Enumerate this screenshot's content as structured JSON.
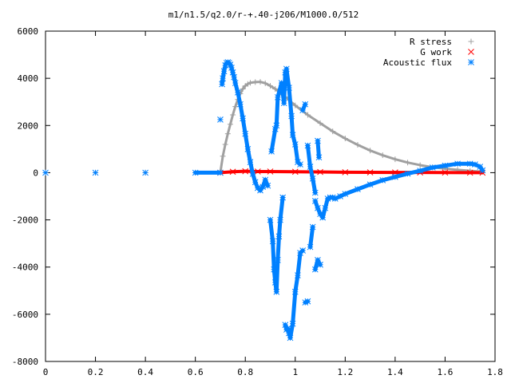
{
  "chart_data": {
    "type": "scatter",
    "title": "m1/n1.5/q2.0/r-+.40-j206/M1000.0/512",
    "xlabel": "",
    "ylabel": "",
    "xlim": [
      0,
      1.8
    ],
    "ylim": [
      -8000,
      6000
    ],
    "x_ticks": [
      "0",
      "0.2",
      "0.4",
      "0.6",
      "0.8",
      "1",
      "1.2",
      "1.4",
      "1.6",
      "1.8"
    ],
    "y_ticks": [
      "6000",
      "4000",
      "2000",
      "0",
      "-2000",
      "-4000",
      "-6000",
      "-8000"
    ],
    "grid": false,
    "legend_position": "top-right",
    "series": [
      {
        "name": "R stress",
        "marker": "plus",
        "color": "#a0a0a0",
        "points": [
          [
            0.0,
            0
          ],
          [
            0.2,
            0
          ],
          [
            0.4,
            0
          ],
          [
            0.6,
            0
          ],
          [
            0.7,
            0
          ],
          [
            0.71,
            700
          ],
          [
            0.72,
            1200
          ],
          [
            0.73,
            1650
          ],
          [
            0.74,
            2050
          ],
          [
            0.75,
            2450
          ],
          [
            0.76,
            2800
          ],
          [
            0.77,
            3100
          ],
          [
            0.78,
            3350
          ],
          [
            0.79,
            3550
          ],
          [
            0.8,
            3680
          ],
          [
            0.81,
            3760
          ],
          [
            0.82,
            3810
          ],
          [
            0.84,
            3840
          ],
          [
            0.86,
            3850
          ],
          [
            0.88,
            3790
          ],
          [
            0.9,
            3680
          ],
          [
            0.92,
            3550
          ],
          [
            0.94,
            3380
          ],
          [
            0.96,
            3210
          ],
          [
            1.0,
            2850
          ],
          [
            1.05,
            2450
          ],
          [
            1.1,
            2100
          ],
          [
            1.15,
            1750
          ],
          [
            1.2,
            1450
          ],
          [
            1.25,
            1180
          ],
          [
            1.3,
            940
          ],
          [
            1.35,
            740
          ],
          [
            1.4,
            570
          ],
          [
            1.45,
            430
          ],
          [
            1.5,
            320
          ],
          [
            1.55,
            230
          ],
          [
            1.6,
            170
          ],
          [
            1.65,
            120
          ],
          [
            1.7,
            80
          ],
          [
            1.75,
            40
          ]
        ]
      },
      {
        "name": "G work",
        "marker": "cross",
        "color": "#ff0000",
        "points": [
          [
            0.7,
            0
          ],
          [
            0.75,
            40
          ],
          [
            0.8,
            60
          ],
          [
            0.85,
            50
          ],
          [
            0.9,
            50
          ],
          [
            1.0,
            40
          ],
          [
            1.1,
            30
          ],
          [
            1.2,
            20
          ],
          [
            1.3,
            15
          ],
          [
            1.4,
            10
          ],
          [
            1.5,
            10
          ],
          [
            1.6,
            5
          ],
          [
            1.7,
            0
          ],
          [
            1.75,
            0
          ]
        ]
      },
      {
        "name": "Acoustic flux",
        "marker": "star",
        "color": "#0080ff",
        "points": [
          [
            0.0,
            0
          ],
          [
            0.2,
            0
          ],
          [
            0.4,
            0
          ],
          [
            0.6,
            0
          ],
          [
            0.7,
            0
          ],
          [
            0.7,
            2250
          ],
          [
            0.707,
            3750
          ],
          [
            0.71,
            4000
          ],
          [
            0.715,
            4300
          ],
          [
            0.72,
            4550
          ],
          [
            0.725,
            4650
          ],
          [
            0.73,
            4680
          ],
          [
            0.735,
            4650
          ],
          [
            0.74,
            4580
          ],
          [
            0.745,
            4450
          ],
          [
            0.75,
            4250
          ],
          [
            0.755,
            4050
          ],
          [
            0.76,
            3800
          ],
          [
            0.77,
            3400
          ],
          [
            0.78,
            2900
          ],
          [
            0.79,
            2300
          ],
          [
            0.8,
            1650
          ],
          [
            0.81,
            1000
          ],
          [
            0.82,
            450
          ],
          [
            0.83,
            -50
          ],
          [
            0.84,
            -400
          ],
          [
            0.85,
            -650
          ],
          [
            0.86,
            -750
          ],
          [
            0.87,
            -600
          ],
          [
            0.88,
            -300
          ],
          [
            0.89,
            -550
          ],
          [
            0.9,
            -2000
          ],
          [
            0.91,
            -2900
          ],
          [
            0.915,
            -4100
          ],
          [
            0.92,
            -4650
          ],
          [
            0.925,
            -5050
          ],
          [
            0.93,
            -3700
          ],
          [
            0.935,
            -2700
          ],
          [
            0.94,
            -2000
          ],
          [
            0.95,
            -1050
          ],
          [
            0.96,
            -6450
          ],
          [
            0.965,
            -6650
          ],
          [
            0.97,
            -6600
          ],
          [
            0.975,
            -6800
          ],
          [
            0.98,
            -7000
          ],
          [
            0.99,
            -6400
          ],
          [
            1.0,
            -5050
          ],
          [
            1.01,
            -4350
          ],
          [
            1.02,
            -3400
          ],
          [
            1.03,
            -3300
          ],
          [
            1.04,
            -5500
          ],
          [
            1.05,
            -5450
          ],
          [
            1.06,
            -3150
          ],
          [
            1.07,
            -2300
          ],
          [
            1.08,
            -4100
          ],
          [
            1.09,
            -3700
          ],
          [
            1.1,
            -3900
          ],
          [
            0.905,
            900
          ],
          [
            0.92,
            1850
          ],
          [
            0.925,
            2000
          ],
          [
            0.93,
            3200
          ],
          [
            0.945,
            3800
          ],
          [
            0.955,
            2950
          ],
          [
            0.96,
            4250
          ],
          [
            0.965,
            4400
          ],
          [
            0.975,
            3600
          ],
          [
            0.985,
            2400
          ],
          [
            0.99,
            1600
          ],
          [
            1.0,
            1200
          ],
          [
            1.01,
            450
          ],
          [
            1.02,
            350
          ],
          [
            1.03,
            2650
          ],
          [
            1.04,
            2900
          ],
          [
            1.05,
            1150
          ],
          [
            1.06,
            250
          ],
          [
            1.07,
            -250
          ],
          [
            1.08,
            -850
          ],
          [
            1.09,
            1350
          ],
          [
            1.095,
            650
          ],
          [
            1.08,
            -1200
          ],
          [
            1.09,
            -1500
          ],
          [
            1.1,
            -1750
          ],
          [
            1.11,
            -1900
          ],
          [
            1.12,
            -1500
          ],
          [
            1.13,
            -1100
          ],
          [
            1.14,
            -1050
          ],
          [
            1.15,
            -1050
          ],
          [
            1.16,
            -1100
          ],
          [
            1.18,
            -1000
          ],
          [
            1.2,
            -900
          ],
          [
            1.25,
            -700
          ],
          [
            1.3,
            -500
          ],
          [
            1.35,
            -320
          ],
          [
            1.4,
            -180
          ],
          [
            1.45,
            -40
          ],
          [
            1.5,
            80
          ],
          [
            1.55,
            220
          ],
          [
            1.6,
            300
          ],
          [
            1.65,
            380
          ],
          [
            1.7,
            380
          ],
          [
            1.72,
            350
          ],
          [
            1.74,
            250
          ],
          [
            1.75,
            100
          ]
        ]
      }
    ]
  }
}
